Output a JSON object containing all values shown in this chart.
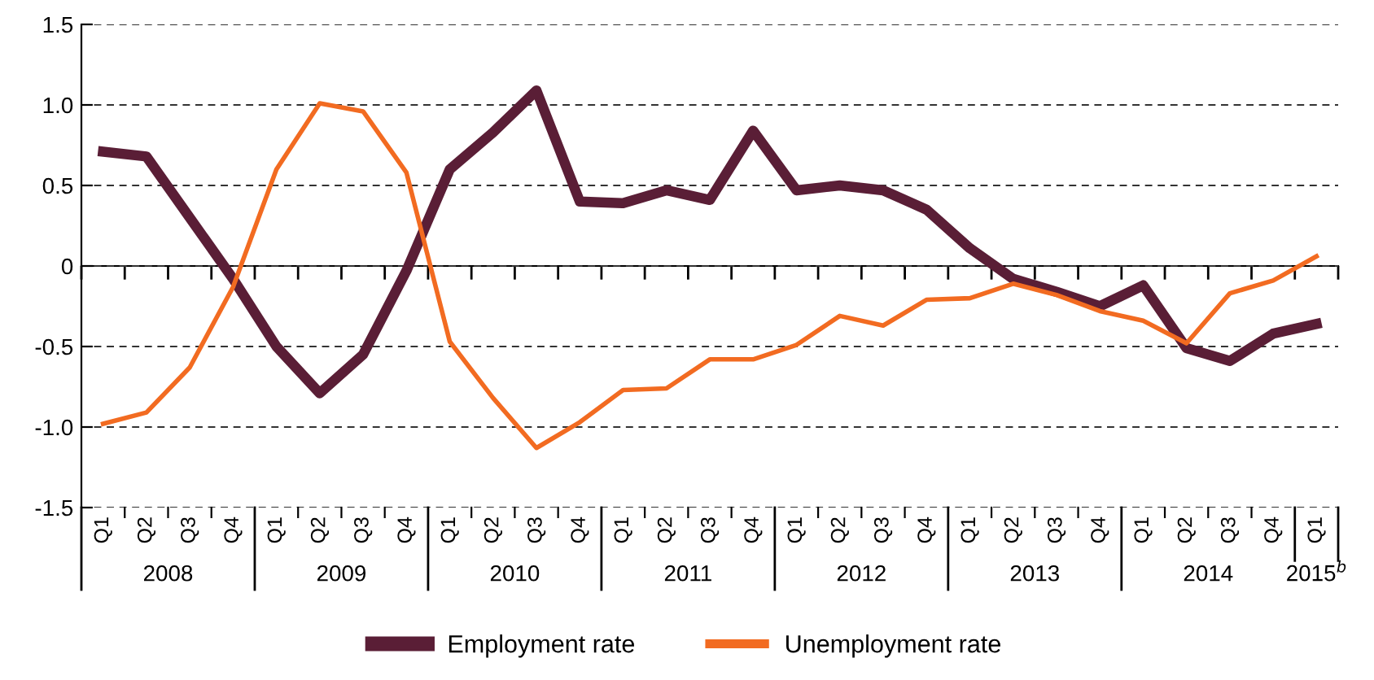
{
  "chart_data": {
    "type": "line",
    "categories": [
      "Q1",
      "Q2",
      "Q3",
      "Q4",
      "Q1",
      "Q2",
      "Q3",
      "Q4",
      "Q1",
      "Q2",
      "Q3",
      "Q4",
      "Q1",
      "Q2",
      "Q3",
      "Q4",
      "Q1",
      "Q2",
      "Q3",
      "Q4",
      "Q1",
      "Q2",
      "Q3",
      "Q4",
      "Q1",
      "Q2",
      "Q3",
      "Q4",
      "Q1"
    ],
    "annotations": [
      "2008",
      "2009",
      "2010",
      "2011",
      "2012",
      "2013",
      "2014",
      "2015$^{b}$"
    ],
    "series": [
      {
        "name": "Employment rate",
        "color": "#5a1e36",
        "values": [
          0.71,
          0.68,
          0.3,
          -0.08,
          -0.5,
          -0.79,
          -0.55,
          -0.03,
          0.6,
          0.83,
          1.09,
          0.4,
          0.39,
          0.47,
          0.41,
          0.84,
          0.47,
          0.5,
          0.47,
          0.35,
          0.11,
          -0.08,
          -0.16,
          -0.25,
          -0.12,
          -0.51,
          -0.59,
          -0.42,
          -0.36
        ]
      },
      {
        "name": "Unemployment rate",
        "color": "#f26b21",
        "values": [
          -0.98,
          -0.91,
          -0.63,
          -0.13,
          0.6,
          1.01,
          0.96,
          0.58,
          -0.47,
          -0.82,
          -1.13,
          -0.97,
          -0.77,
          -0.76,
          -0.58,
          -0.58,
          -0.49,
          -0.31,
          -0.37,
          -0.21,
          -0.2,
          -0.11,
          -0.18,
          -0.28,
          -0.34,
          -0.48,
          -0.17,
          -0.09,
          0.06
        ]
      }
    ],
    "ylim": [
      -1.5,
      1.5
    ],
    "yticks": [
      {
        "value": -1.5,
        "label": "-1.5"
      },
      {
        "value": -1.0,
        "label": "-1.0"
      },
      {
        "value": -0.5,
        "label": "-0.5"
      },
      0,
      {
        "value": 0.5,
        "label": "0.5"
      },
      {
        "value": 1.0,
        "label": "1.0"
      },
      {
        "value": 1.5,
        "label": "1.5"
      }
    ],
    "grid": "y",
    "line_style": "solid",
    "marker": "none",
    "legend": "bottom"
  }
}
